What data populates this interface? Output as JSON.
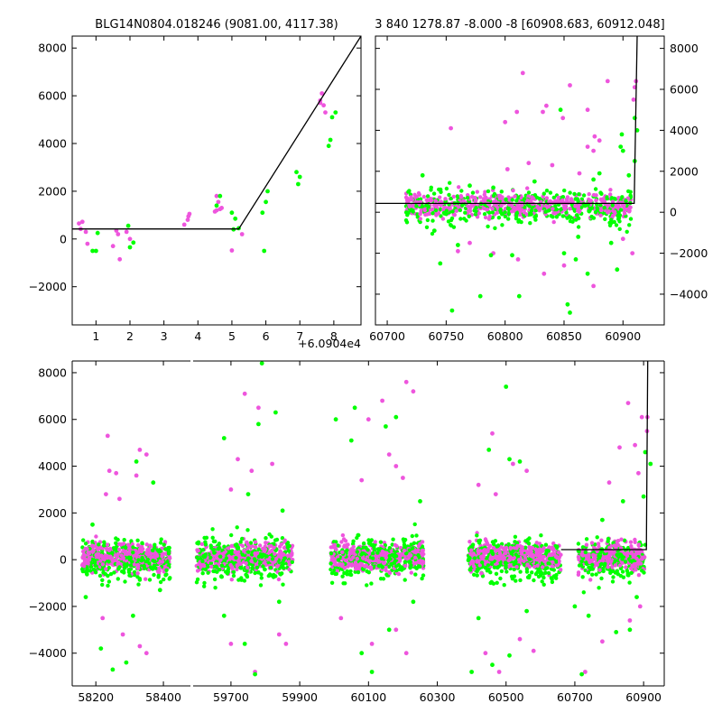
{
  "colors": {
    "g_band": "#00ff00",
    "r_band": "#ee55dd",
    "model": "#000000"
  },
  "chart_data": [
    {
      "id": "top-left",
      "type": "scatter",
      "title": "BLG14N0804.018246 (9081.00, 4117.38)",
      "xlabel": "",
      "ylabel": "",
      "x_offset_label": "+6.0904e4",
      "xlim": [
        0.3,
        8.8
      ],
      "ylim": [
        -3600,
        8500
      ],
      "xticks": [
        "1",
        "2",
        "3",
        "4",
        "5",
        "6",
        "7",
        "8"
      ],
      "xtick_values": [
        1,
        2,
        3,
        4,
        5,
        6,
        7,
        8
      ],
      "yticks": [
        "−2000",
        "0",
        "2000",
        "4000",
        "6000",
        "8000"
      ],
      "ytick_values": [
        -2000,
        0,
        2000,
        4000,
        6000,
        8000
      ],
      "yaxis_side": "left",
      "grid": false,
      "model_line": {
        "x": [
          0.3,
          5.2,
          8.8
        ],
        "y": [
          420,
          420,
          8500
        ]
      },
      "series": [
        {
          "band": "r",
          "color": "#ee55dd",
          "points": [
            [
              0.5,
              650
            ],
            [
              0.6,
              720
            ],
            [
              0.55,
              420
            ],
            [
              0.7,
              300
            ],
            [
              0.75,
              -200
            ],
            [
              1.5,
              -300
            ],
            [
              1.6,
              350
            ],
            [
              1.65,
              200
            ],
            [
              1.7,
              -850
            ],
            [
              1.9,
              300
            ],
            [
              2.0,
              0
            ],
            [
              3.6,
              600
            ],
            [
              3.7,
              800
            ],
            [
              3.75,
              1050
            ],
            [
              3.72,
              950
            ],
            [
              4.5,
              1150
            ],
            [
              4.55,
              1800
            ],
            [
              4.6,
              1550
            ],
            [
              4.65,
              1250
            ],
            [
              4.7,
              1300
            ],
            [
              4.55,
              1200
            ],
            [
              5.0,
              -480
            ],
            [
              5.05,
              400
            ],
            [
              5.3,
              200
            ],
            [
              7.6,
              5800
            ],
            [
              7.65,
              6100
            ],
            [
              7.7,
              5600
            ],
            [
              7.75,
              5300
            ],
            [
              7.6,
              5700
            ]
          ]
        },
        {
          "band": "g",
          "color": "#00ff00",
          "points": [
            [
              0.9,
              -500
            ],
            [
              1.0,
              -500
            ],
            [
              1.05,
              250
            ],
            [
              1.95,
              550
            ],
            [
              2.0,
              -350
            ],
            [
              2.1,
              -150
            ],
            [
              4.55,
              1400
            ],
            [
              4.65,
              1800
            ],
            [
              5.0,
              1100
            ],
            [
              5.05,
              400
            ],
            [
              5.1,
              850
            ],
            [
              5.2,
              450
            ],
            [
              5.9,
              1100
            ],
            [
              5.95,
              -500
            ],
            [
              6.05,
              2000
            ],
            [
              6.0,
              1550
            ],
            [
              6.9,
              2800
            ],
            [
              6.95,
              2300
            ],
            [
              7.0,
              2600
            ],
            [
              7.85,
              3900
            ],
            [
              7.9,
              4150
            ],
            [
              7.95,
              5100
            ],
            [
              8.05,
              5300
            ]
          ]
        }
      ]
    },
    {
      "id": "top-right",
      "type": "scatter",
      "title": "3 840 1278.87 -8.000 -8 [60908.683, 60912.048]",
      "xlabel": "",
      "ylabel": "",
      "xlim": [
        60690,
        60935
      ],
      "ylim": [
        -5500,
        8600
      ],
      "xticks": [
        "60700",
        "60750",
        "60800",
        "60850",
        "60900"
      ],
      "xtick_values": [
        60700,
        60750,
        60800,
        60850,
        60900
      ],
      "yticks": [
        "−4000",
        "−2000",
        "0",
        "2000",
        "4000",
        "6000",
        "8000"
      ],
      "ytick_values": [
        -4000,
        -2000,
        0,
        2000,
        4000,
        6000,
        8000
      ],
      "yaxis_side": "right",
      "grid": false,
      "model_line": {
        "x": [
          60690,
          60909.5,
          60912.0
        ],
        "y": [
          430,
          430,
          8600
        ]
      },
      "cluster": {
        "x_range": [
          60716,
          60907
        ],
        "y_center": 300,
        "n": 900,
        "seed": 11
      },
      "series": [
        {
          "band": "r",
          "color": "#ee55dd",
          "points": [
            [
              60815,
              6800
            ],
            [
              60855,
              6200
            ],
            [
              60887,
              6400
            ],
            [
              60810,
              4900
            ],
            [
              60800,
              4400
            ],
            [
              60835,
              5200
            ],
            [
              60832,
              4900
            ],
            [
              60870,
              5000
            ],
            [
              60849,
              4600
            ],
            [
              60754,
              4100
            ],
            [
              60876,
              3700
            ],
            [
              60880,
              3500
            ],
            [
              60870,
              3200
            ],
            [
              60875,
              3000
            ],
            [
              60820,
              2400
            ],
            [
              60802,
              2100
            ],
            [
              60910,
              6100
            ],
            [
              60911,
              6400
            ],
            [
              60909,
              5500
            ],
            [
              60840,
              2300
            ],
            [
              60863,
              1900
            ],
            [
              60760,
              -1900
            ],
            [
              60790,
              -2000
            ],
            [
              60811,
              -2300
            ],
            [
              60850,
              -2600
            ],
            [
              60875,
              -3600
            ],
            [
              60908,
              -2000
            ],
            [
              60833,
              -3000
            ],
            [
              60900,
              -1300
            ],
            [
              60770,
              -1500
            ]
          ]
        },
        {
          "band": "g",
          "color": "#00ff00",
          "points": [
            [
              60853,
              -4500
            ],
            [
              60755,
              -4800
            ],
            [
              60812,
              -4100
            ],
            [
              60779,
              -4100
            ],
            [
              60855,
              -4900
            ],
            [
              60850,
              -2000
            ],
            [
              60860,
              -2300
            ],
            [
              60870,
              -3000
            ],
            [
              60895,
              -2800
            ],
            [
              60890,
              -1500
            ],
            [
              60745,
              -2500
            ],
            [
              60788,
              -2100
            ],
            [
              60900,
              3000
            ],
            [
              60899,
              3800
            ],
            [
              60898,
              3200
            ],
            [
              60880,
              1900
            ],
            [
              60847,
              5000
            ],
            [
              60910,
              4600
            ],
            [
              60912,
              4000
            ],
            [
              60910,
              2500
            ],
            [
              60905,
              1800
            ],
            [
              60730,
              1800
            ],
            [
              60875,
              1600
            ],
            [
              60825,
              1500
            ],
            [
              60770,
              1300
            ],
            [
              60790,
              1200
            ],
            [
              60760,
              -1600
            ],
            [
              60806,
              -2100
            ],
            [
              60862,
              -1200
            ],
            [
              60740,
              -900
            ]
          ]
        }
      ]
    },
    {
      "id": "bottom",
      "type": "scatter",
      "title": "",
      "xlabel": "",
      "ylabel": "",
      "ylim": [
        -5400,
        8500
      ],
      "broken_axis": true,
      "segments": [
        {
          "xlim": [
            58130,
            58480
          ],
          "xticks": [
            "58200",
            "58400"
          ],
          "xtick_values": [
            58200,
            58400
          ]
        },
        {
          "xlim": [
            59590,
            60960
          ],
          "xticks": [
            "59700",
            "59900",
            "60100",
            "60300",
            "60500",
            "60700",
            "60900"
          ],
          "xtick_values": [
            59700,
            59900,
            60100,
            60300,
            60500,
            60700,
            60900
          ]
        }
      ],
      "yticks": [
        "−4000",
        "−2000",
        "0",
        "2000",
        "4000",
        "6000",
        "8000"
      ],
      "ytick_values": [
        -4000,
        -2000,
        0,
        2000,
        4000,
        6000,
        8000
      ],
      "yaxis_side": "left",
      "grid": false,
      "model_line": {
        "x": [
          60660,
          60908,
          60912
        ],
        "y": [
          430,
          430,
          8500
        ]
      },
      "clusters": [
        {
          "x_range": [
            58160,
            58420
          ],
          "n": 700
        },
        {
          "x_range": [
            59600,
            59880
          ],
          "n": 700
        },
        {
          "x_range": [
            59990,
            60260
          ],
          "n": 700
        },
        {
          "x_range": [
            60390,
            60660
          ],
          "n": 700
        },
        {
          "x_range": [
            60710,
            60905
          ],
          "n": 500
        }
      ],
      "series": [
        {
          "band": "r",
          "color": "#ee55dd",
          "points": [
            [
              58235,
              5300
            ],
            [
              58330,
              4700
            ],
            [
              58350,
              4500
            ],
            [
              58240,
              3800
            ],
            [
              58260,
              3700
            ],
            [
              58320,
              3600
            ],
            [
              58230,
              2800
            ],
            [
              58270,
              2600
            ],
            [
              58220,
              -2500
            ],
            [
              58280,
              -3200
            ],
            [
              58330,
              -3700
            ],
            [
              58350,
              -4000
            ],
            [
              59740,
              7100
            ],
            [
              59780,
              6500
            ],
            [
              59700,
              3000
            ],
            [
              59760,
              3800
            ],
            [
              59820,
              4100
            ],
            [
              59720,
              4300
            ],
            [
              59700,
              -3600
            ],
            [
              59770,
              -4800
            ],
            [
              59860,
              -3600
            ],
            [
              59840,
              -3200
            ],
            [
              60140,
              6800
            ],
            [
              60210,
              7600
            ],
            [
              60230,
              7200
            ],
            [
              60100,
              6000
            ],
            [
              60160,
              4500
            ],
            [
              60180,
              4000
            ],
            [
              60200,
              3500
            ],
            [
              60080,
              3400
            ],
            [
              60110,
              -3600
            ],
            [
              60210,
              -4000
            ],
            [
              60180,
              -3000
            ],
            [
              60020,
              -2500
            ],
            [
              60460,
              5400
            ],
            [
              60520,
              4100
            ],
            [
              60560,
              3800
            ],
            [
              60420,
              3200
            ],
            [
              60470,
              2800
            ],
            [
              60540,
              -3400
            ],
            [
              60580,
              -3900
            ],
            [
              60440,
              -4000
            ],
            [
              60480,
              -4800
            ],
            [
              60855,
              6700
            ],
            [
              60895,
              6100
            ],
            [
              60911,
              6100
            ],
            [
              60910,
              5500
            ],
            [
              60875,
              4900
            ],
            [
              60830,
              4800
            ],
            [
              60885,
              3700
            ],
            [
              60800,
              3300
            ],
            [
              60730,
              -4800
            ],
            [
              60780,
              -3500
            ],
            [
              60860,
              -2600
            ],
            [
              60890,
              -2000
            ]
          ]
        },
        {
          "band": "g",
          "color": "#00ff00",
          "points": [
            [
              58370,
              3300
            ],
            [
              58320,
              4200
            ],
            [
              58190,
              1500
            ],
            [
              58170,
              -1600
            ],
            [
              58250,
              -4700
            ],
            [
              58290,
              -4400
            ],
            [
              58310,
              -2400
            ],
            [
              58215,
              -3800
            ],
            [
              58390,
              -1300
            ],
            [
              59680,
              5200
            ],
            [
              59780,
              5800
            ],
            [
              59790,
              8400
            ],
            [
              59830,
              6300
            ],
            [
              59750,
              2800
            ],
            [
              59740,
              -3600
            ],
            [
              59770,
              -4900
            ],
            [
              59680,
              -2400
            ],
            [
              59840,
              -1800
            ],
            [
              59850,
              2100
            ],
            [
              60005,
              6000
            ],
            [
              60060,
              6500
            ],
            [
              60050,
              5100
            ],
            [
              60150,
              5700
            ],
            [
              60180,
              6100
            ],
            [
              60110,
              -4800
            ],
            [
              60080,
              -4000
            ],
            [
              60160,
              -3000
            ],
            [
              60230,
              -1800
            ],
            [
              60250,
              2500
            ],
            [
              60450,
              4700
            ],
            [
              60510,
              4300
            ],
            [
              60500,
              7400
            ],
            [
              60540,
              4200
            ],
            [
              60400,
              -4800
            ],
            [
              60460,
              -4500
            ],
            [
              60510,
              -4100
            ],
            [
              60420,
              -2500
            ],
            [
              60560,
              -2200
            ],
            [
              60920,
              4100
            ],
            [
              60905,
              4600
            ],
            [
              60900,
              2700
            ],
            [
              60880,
              -1600
            ],
            [
              60820,
              -3100
            ],
            [
              60860,
              -3000
            ],
            [
              60740,
              -2400
            ],
            [
              60720,
              -4900
            ],
            [
              60700,
              -2000
            ],
            [
              60780,
              1700
            ],
            [
              60840,
              2500
            ]
          ]
        }
      ]
    }
  ]
}
